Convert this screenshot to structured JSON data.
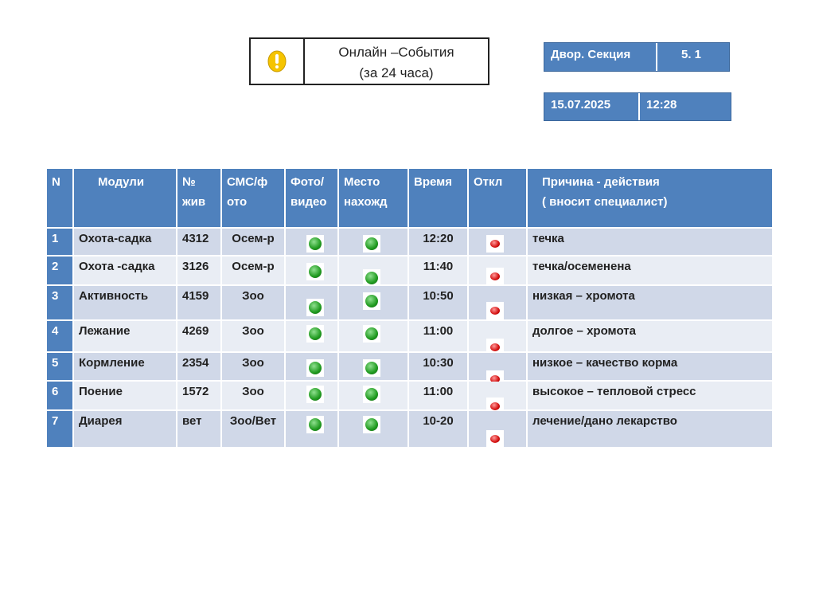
{
  "header": {
    "title": "Онлайн –События",
    "subtitle": "(за 24 часа)"
  },
  "info": [
    [
      "Двор. Секция",
      "5. 1"
    ],
    [
      "15.07.2025",
      "12:28"
    ]
  ],
  "table": {
    "columns": [
      [
        "N"
      ],
      [
        "Модули"
      ],
      [
        "№",
        "жив"
      ],
      [
        "СМС/ф",
        "ото"
      ],
      [
        "Фото/",
        "видео"
      ],
      [
        "Место",
        "нахожд"
      ],
      [
        "Время"
      ],
      [
        "Откл"
      ],
      [
        "Причина - действия",
        "( вносит  специалист)"
      ]
    ],
    "rows": [
      [
        "1",
        "Охота-садка",
        "4312",
        "Осем-р",
        "12:20",
        "течка"
      ],
      [
        "2",
        "Охота -садка",
        "3126",
        "Осем-р",
        "11:40",
        "течка/осеменена"
      ],
      [
        "3",
        "Активность",
        "4159",
        "Зоо",
        "10:50",
        "низкая – хромота"
      ],
      [
        "4",
        "Лежание",
        "4269",
        "Зоо",
        "11:00",
        "долгое – хромота"
      ],
      [
        "5",
        "Кормление",
        "2354",
        "Зоо",
        "10:30",
        "низкое – качество корма"
      ],
      [
        "6",
        "Поение",
        "1572",
        "Зоо",
        "11:00",
        "высокое – тепловой стресс"
      ],
      [
        "7",
        "Диарея",
        "вет",
        "Зоо/Вет",
        "10-20",
        "лечение/дано лекарство"
      ]
    ]
  }
}
